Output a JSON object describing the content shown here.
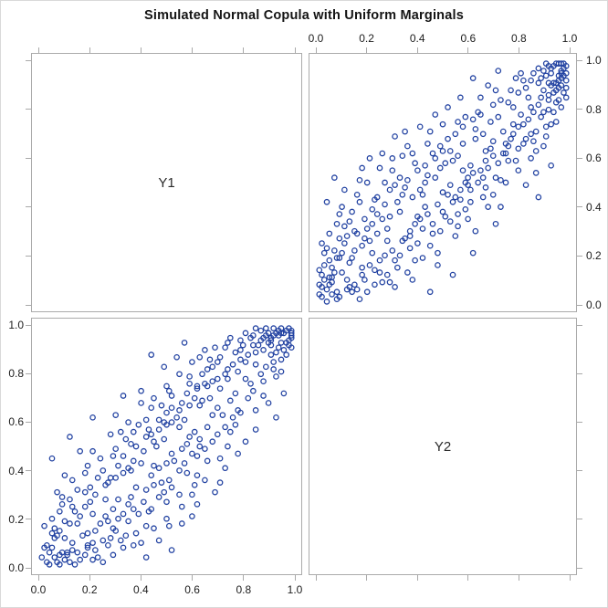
{
  "title": "Simulated Normal Copula with Uniform Marginals",
  "colors": {
    "marker": "#2343A2",
    "frame": "#ABABAB",
    "tick": "#A9A9A9",
    "tick_label": "#1C1C1C",
    "title": "#141414",
    "background": "#FFFFFF",
    "figure_border": "#D9D9D9"
  },
  "chart_data": {
    "type": "scatter",
    "layout": "2x2 scatterplot matrix, diagonal cells show variable names, off-diagonal cells are mirrored scatters",
    "title": "Simulated Normal Copula with Uniform Marginals",
    "variables": [
      "Y1",
      "Y2"
    ],
    "diagonal_labels": [
      "Y1",
      "Y2"
    ],
    "axis_ticks": [
      0,
      0.2,
      0.4,
      0.6,
      0.8,
      1
    ],
    "tick_labels": [
      "0.0",
      "0.2",
      "0.4",
      "0.6",
      "0.8",
      "1.0"
    ],
    "labeled_edges": {
      "top": "right column",
      "right": "top row",
      "bottom": "left column",
      "left": "bottom row"
    },
    "xlim": [
      0,
      1
    ],
    "ylim": [
      0,
      1
    ],
    "grid": false,
    "marker": {
      "shape": "open-circle",
      "color": "#2343A2",
      "radius_px": 2.7,
      "stroke_px": 1.3
    },
    "n_points": 320,
    "points": [
      [
        0.02,
        0.03
      ],
      [
        0.05,
        0.11
      ],
      [
        0.08,
        0.02
      ],
      [
        0.1,
        0.21
      ],
      [
        0.13,
        0.07
      ],
      [
        0.15,
        0.3
      ],
      [
        0.18,
        0.12
      ],
      [
        0.2,
        0.05
      ],
      [
        0.22,
        0.33
      ],
      [
        0.25,
        0.18
      ],
      [
        0.27,
        0.41
      ],
      [
        0.3,
        0.22
      ],
      [
        0.32,
        0.15
      ],
      [
        0.35,
        0.48
      ],
      [
        0.37,
        0.28
      ],
      [
        0.4,
        0.55
      ],
      [
        0.42,
        0.31
      ],
      [
        0.45,
        0.24
      ],
      [
        0.47,
        0.6
      ],
      [
        0.5,
        0.38
      ],
      [
        0.52,
        0.45
      ],
      [
        0.55,
        0.7
      ],
      [
        0.57,
        0.43
      ],
      [
        0.6,
        0.52
      ],
      [
        0.62,
        0.76
      ],
      [
        0.65,
        0.55
      ],
      [
        0.67,
        0.48
      ],
      [
        0.7,
        0.82
      ],
      [
        0.72,
        0.58
      ],
      [
        0.75,
        0.66
      ],
      [
        0.77,
        0.88
      ],
      [
        0.8,
        0.64
      ],
      [
        0.82,
        0.74
      ],
      [
        0.85,
        0.92
      ],
      [
        0.87,
        0.71
      ],
      [
        0.9,
        0.96
      ],
      [
        0.92,
        0.8
      ],
      [
        0.94,
        0.87
      ],
      [
        0.96,
        0.94
      ],
      [
        0.98,
        0.99
      ],
      [
        0.03,
        0.16
      ],
      [
        0.06,
        0.04
      ],
      [
        0.09,
        0.27
      ],
      [
        0.12,
        0.1
      ],
      [
        0.16,
        0.06
      ],
      [
        0.19,
        0.35
      ],
      [
        0.23,
        0.14
      ],
      [
        0.26,
        0.09
      ],
      [
        0.29,
        0.36
      ],
      [
        0.33,
        0.2
      ],
      [
        0.36,
        0.51
      ],
      [
        0.39,
        0.18
      ],
      [
        0.43,
        0.4
      ],
      [
        0.46,
        0.29
      ],
      [
        0.49,
        0.65
      ],
      [
        0.53,
        0.34
      ],
      [
        0.56,
        0.61
      ],
      [
        0.59,
        0.39
      ],
      [
        0.63,
        0.68
      ],
      [
        0.66,
        0.44
      ],
      [
        0.69,
        0.75
      ],
      [
        0.73,
        0.51
      ],
      [
        0.76,
        0.59
      ],
      [
        0.79,
        0.93
      ],
      [
        0.83,
        0.68
      ],
      [
        0.86,
        0.79
      ],
      [
        0.89,
        0.85
      ],
      [
        0.91,
        0.73
      ],
      [
        0.93,
        0.97
      ],
      [
        0.95,
        0.83
      ],
      [
        0.97,
        0.9
      ],
      [
        0.99,
        0.95
      ],
      [
        0.01,
        0.08
      ],
      [
        0.04,
        0.23
      ],
      [
        0.07,
        0.13
      ],
      [
        0.11,
        0.32
      ],
      [
        0.14,
        0.19
      ],
      [
        0.17,
        0.42
      ],
      [
        0.21,
        0.26
      ],
      [
        0.24,
        0.44
      ],
      [
        0.28,
        0.12
      ],
      [
        0.31,
        0.49
      ],
      [
        0.34,
        0.26
      ],
      [
        0.38,
        0.62
      ],
      [
        0.41,
        0.35
      ],
      [
        0.44,
        0.53
      ],
      [
        0.48,
        0.21
      ],
      [
        0.51,
        0.58
      ],
      [
        0.54,
        0.42
      ],
      [
        0.58,
        0.73
      ],
      [
        0.61,
        0.47
      ],
      [
        0.64,
        0.79
      ],
      [
        0.68,
        0.56
      ],
      [
        0.71,
        0.88
      ],
      [
        0.74,
        0.62
      ],
      [
        0.78,
        0.7
      ],
      [
        0.81,
        0.95
      ],
      [
        0.84,
        0.76
      ],
      [
        0.88,
        0.82
      ],
      [
        0.92,
        0.91
      ],
      [
        0.95,
        0.99
      ],
      [
        0.97,
        0.96
      ],
      [
        0.99,
        0.92
      ],
      [
        0.96,
        0.89
      ],
      [
        0.94,
        0.98
      ],
      [
        0.98,
        0.94
      ],
      [
        0.93,
        0.9
      ],
      [
        0.99,
        0.98
      ],
      [
        0.91,
        0.94
      ],
      [
        0.96,
        0.99
      ],
      [
        0.02,
        0.07
      ],
      [
        0.04,
        0.01
      ],
      [
        0.06,
        0.09
      ],
      [
        0.01,
        0.14
      ],
      [
        0.08,
        0.05
      ],
      [
        0.03,
        0.1
      ],
      [
        0.05,
        0.18
      ],
      [
        0.09,
        0.03
      ],
      [
        0.07,
        0.22
      ],
      [
        0.02,
        0.12
      ],
      [
        0.12,
        0.28
      ],
      [
        0.15,
        0.08
      ],
      [
        0.18,
        0.24
      ],
      [
        0.22,
        0.39
      ],
      [
        0.25,
        0.13
      ],
      [
        0.28,
        0.31
      ],
      [
        0.31,
        0.18
      ],
      [
        0.34,
        0.45
      ],
      [
        0.37,
        0.23
      ],
      [
        0.4,
        0.36
      ],
      [
        0.43,
        0.57
      ],
      [
        0.46,
        0.33
      ],
      [
        0.5,
        0.46
      ],
      [
        0.53,
        0.63
      ],
      [
        0.56,
        0.37
      ],
      [
        0.6,
        0.49
      ],
      [
        0.63,
        0.72
      ],
      [
        0.66,
        0.52
      ],
      [
        0.7,
        0.61
      ],
      [
        0.73,
        0.84
      ],
      [
        0.76,
        0.65
      ],
      [
        0.8,
        0.73
      ],
      [
        0.83,
        0.89
      ],
      [
        0.86,
        0.67
      ],
      [
        0.89,
        0.77
      ],
      [
        0.92,
        0.86
      ],
      [
        0.94,
        0.79
      ],
      [
        0.97,
        0.93
      ],
      [
        0.88,
        0.97
      ],
      [
        0.85,
        0.81
      ],
      [
        0.07,
        0.52
      ],
      [
        0.88,
        0.44
      ],
      [
        0.45,
        0.05
      ],
      [
        0.93,
        0.57
      ],
      [
        0.18,
        0.56
      ],
      [
        0.62,
        0.21
      ],
      [
        0.35,
        0.71
      ],
      [
        0.54,
        0.12
      ],
      [
        0.26,
        0.62
      ],
      [
        0.71,
        0.33
      ],
      [
        0.1,
        0.4
      ],
      [
        0.2,
        0.5
      ],
      [
        0.3,
        0.6
      ],
      [
        0.4,
        0.25
      ],
      [
        0.5,
        0.74
      ],
      [
        0.6,
        0.35
      ],
      [
        0.7,
        0.45
      ],
      [
        0.8,
        0.55
      ],
      [
        0.9,
        0.65
      ],
      [
        0.13,
        0.34
      ],
      [
        0.23,
        0.08
      ],
      [
        0.33,
        0.52
      ],
      [
        0.44,
        0.66
      ],
      [
        0.55,
        0.28
      ],
      [
        0.65,
        0.85
      ],
      [
        0.75,
        0.5
      ],
      [
        0.85,
        0.6
      ],
      [
        0.95,
        0.75
      ],
      [
        0.05,
        0.29
      ],
      [
        0.16,
        0.45
      ],
      [
        0.27,
        0.2
      ],
      [
        0.38,
        0.1
      ],
      [
        0.48,
        0.41
      ],
      [
        0.58,
        0.66
      ],
      [
        0.68,
        0.4
      ],
      [
        0.78,
        0.81
      ],
      [
        0.87,
        0.54
      ],
      [
        0.96,
        0.84
      ],
      [
        0.06,
        0.15
      ],
      [
        0.17,
        0.02
      ],
      [
        0.29,
        0.47
      ],
      [
        0.39,
        0.58
      ],
      [
        0.49,
        0.3
      ],
      [
        0.59,
        0.77
      ],
      [
        0.69,
        0.64
      ],
      [
        0.79,
        0.59
      ],
      [
        0.9,
        0.88
      ],
      [
        0.11,
        0.25
      ],
      [
        0.21,
        0.16
      ],
      [
        0.32,
        0.42
      ],
      [
        0.42,
        0.19
      ],
      [
        0.52,
        0.68
      ],
      [
        0.61,
        0.42
      ],
      [
        0.72,
        0.77
      ],
      [
        0.82,
        0.92
      ],
      [
        0.91,
        0.69
      ],
      [
        0.03,
        0.21
      ],
      [
        0.14,
        0.38
      ],
      [
        0.24,
        0.29
      ],
      [
        0.36,
        0.13
      ],
      [
        0.47,
        0.52
      ],
      [
        0.57,
        0.47
      ],
      [
        0.67,
        0.59
      ],
      [
        0.77,
        0.68
      ],
      [
        0.86,
        0.95
      ],
      [
        0.98,
        0.87
      ],
      [
        0.08,
        0.33
      ],
      [
        0.19,
        0.1
      ],
      [
        0.3,
        0.55
      ],
      [
        0.41,
        0.47
      ],
      [
        0.51,
        0.36
      ],
      [
        0.62,
        0.54
      ],
      [
        0.71,
        0.52
      ],
      [
        0.81,
        0.78
      ],
      [
        0.92,
        0.98
      ],
      [
        0.04,
        0.06
      ],
      [
        0.15,
        0.22
      ],
      [
        0.26,
        0.35
      ],
      [
        0.37,
        0.3
      ],
      [
        0.46,
        0.62
      ],
      [
        0.56,
        0.75
      ],
      [
        0.66,
        0.7
      ],
      [
        0.76,
        0.83
      ],
      [
        0.87,
        0.63
      ],
      [
        0.97,
        0.99
      ],
      [
        0.09,
        0.19
      ],
      [
        0.2,
        0.31
      ],
      [
        0.31,
        0.07
      ],
      [
        0.43,
        0.5
      ],
      [
        0.54,
        0.59
      ],
      [
        0.64,
        0.5
      ],
      [
        0.74,
        0.71
      ],
      [
        0.84,
        0.85
      ],
      [
        0.93,
        0.74
      ],
      [
        0.02,
        0.25
      ],
      [
        0.13,
        0.17
      ],
      [
        0.23,
        0.43
      ],
      [
        0.34,
        0.61
      ],
      [
        0.44,
        0.37
      ],
      [
        0.55,
        0.44
      ],
      [
        0.65,
        0.78
      ],
      [
        0.75,
        0.62
      ],
      [
        0.85,
        0.7
      ],
      [
        0.95,
        0.91
      ],
      [
        0.06,
        0.11
      ],
      [
        0.16,
        0.29
      ],
      [
        0.27,
        0.5
      ],
      [
        0.38,
        0.44
      ],
      [
        0.49,
        0.56
      ],
      [
        0.59,
        0.5
      ],
      [
        0.7,
        0.67
      ],
      [
        0.8,
        0.87
      ],
      [
        0.9,
        0.79
      ],
      [
        0.99,
        0.89
      ],
      [
        0.01,
        0.04
      ],
      [
        0.12,
        0.06
      ],
      [
        0.22,
        0.21
      ],
      [
        0.33,
        0.38
      ],
      [
        0.45,
        0.71
      ],
      [
        0.56,
        0.32
      ],
      [
        0.67,
        0.63
      ],
      [
        0.78,
        0.74
      ],
      [
        0.88,
        0.91
      ],
      [
        0.97,
        0.81
      ],
      [
        0.05,
        0.08
      ],
      [
        0.18,
        0.15
      ],
      [
        0.28,
        0.26
      ],
      [
        0.39,
        0.33
      ],
      [
        0.5,
        0.63
      ],
      [
        0.61,
        0.57
      ],
      [
        0.93,
        0.95
      ],
      [
        0.95,
        0.88
      ],
      [
        0.98,
        0.97
      ],
      [
        0.96,
        0.92
      ],
      [
        0.91,
        0.99
      ],
      [
        0.89,
        0.93
      ],
      [
        0.99,
        0.85
      ],
      [
        0.94,
        0.91
      ],
      [
        0.92,
        0.84
      ],
      [
        0.97,
        0.95
      ],
      [
        0.1,
        0.13
      ],
      [
        0.08,
        0.19
      ],
      [
        0.14,
        0.05
      ],
      [
        0.19,
        0.27
      ],
      [
        0.24,
        0.37
      ],
      [
        0.29,
        0.09
      ],
      [
        0.35,
        0.27
      ],
      [
        0.42,
        0.45
      ],
      [
        0.53,
        0.49
      ],
      [
        0.58,
        0.55
      ],
      [
        0.11,
        0.47
      ],
      [
        0.25,
        0.56
      ],
      [
        0.47,
        0.78
      ],
      [
        0.36,
        0.65
      ],
      [
        0.57,
        0.85
      ],
      [
        0.48,
        0.16
      ],
      [
        0.63,
        0.3
      ],
      [
        0.73,
        0.4
      ],
      [
        0.83,
        0.49
      ],
      [
        0.68,
        0.9
      ],
      [
        0.21,
        0.6
      ],
      [
        0.31,
        0.69
      ],
      [
        0.41,
        0.73
      ],
      [
        0.52,
        0.81
      ],
      [
        0.62,
        0.93
      ],
      [
        0.72,
        0.96
      ],
      [
        0.82,
        0.66
      ],
      [
        0.09,
        0.37
      ],
      [
        0.04,
        0.42
      ],
      [
        0.17,
        0.51
      ]
    ]
  }
}
